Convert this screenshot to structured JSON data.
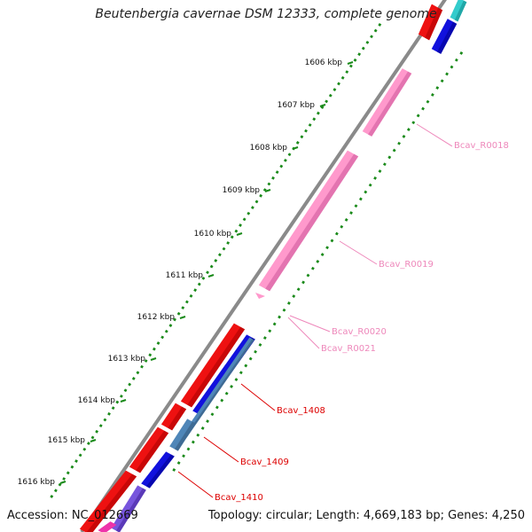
{
  "title": "Beutenbergia cavernae DSM 12333, complete genome",
  "footer": {
    "accession": "Accession: NC_012669",
    "summary": "Topology: circular; Length: 4,669,183 bp; Genes: 4,250"
  },
  "ticks": [
    "1606 kbp",
    "1607 kbp",
    "1608 kbp",
    "1609 kbp",
    "1610 kbp",
    "1611 kbp",
    "1612 kbp",
    "1613 kbp",
    "1614 kbp",
    "1615 kbp",
    "1616 kbp"
  ],
  "feature_labels": [
    {
      "text": "Bcav_R0018",
      "color": "#ee88bb"
    },
    {
      "text": "Bcav_R0019",
      "color": "#ee88bb"
    },
    {
      "text": "Bcav_R0020",
      "color": "#ee88bb"
    },
    {
      "text": "Bcav_R0021",
      "color": "#ee88bb"
    },
    {
      "text": "Bcav_1408",
      "color": "#dd0000"
    },
    {
      "text": "Bcav_1409",
      "color": "#dd0000"
    },
    {
      "text": "Bcav_1410",
      "color": "#dd0000"
    }
  ],
  "colors": {
    "backbone": "#8a8a8a",
    "cds_forward": "#ee1111",
    "rna": "#ff99cc",
    "cds_reverse": "#1111dd",
    "steel": "#4f86b8",
    "cyan": "#33cccc",
    "violet": "#7755dd",
    "gc_ticks": "#1a8a1a"
  }
}
